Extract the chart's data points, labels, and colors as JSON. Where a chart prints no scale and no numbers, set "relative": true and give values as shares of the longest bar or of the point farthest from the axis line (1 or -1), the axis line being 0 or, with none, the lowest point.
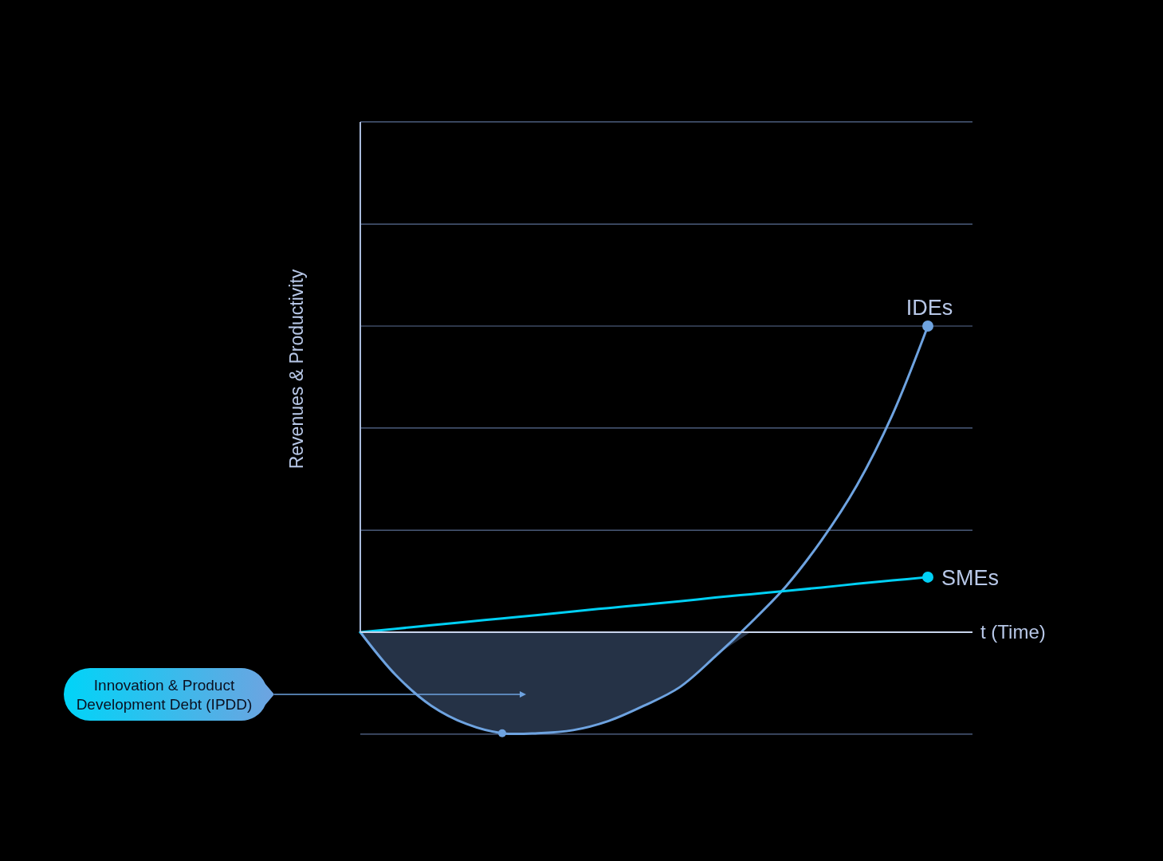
{
  "chart_data": {
    "type": "line",
    "relative": true,
    "xlabel": "t (Time)",
    "ylabel": "Revenues & Productivity",
    "ref_lines": [
      {
        "axis": "y",
        "value": 1.667
      },
      {
        "axis": "y",
        "value": 1.333
      },
      {
        "axis": "y",
        "value": 1
      },
      {
        "axis": "y",
        "value": 0.667
      },
      {
        "axis": "y",
        "value": 0.333
      },
      {
        "axis": "y",
        "value": -0.333
      }
    ],
    "annotations": [
      "Innovation & Product Development Debt (IPDD)"
    ],
    "categories": [
      null,
      null,
      null,
      null,
      null,
      null,
      null,
      null,
      null,
      null,
      null,
      null,
      null,
      null,
      null,
      null,
      null
    ],
    "series": [
      {
        "type": "area",
        "color": "#253246",
        "values": [
          0,
          -0.14,
          -0.24,
          -0.3,
          -0.33,
          -0.33,
          -0.32,
          -0.29,
          -0.24,
          -0.18,
          -0.08,
          0,
          null,
          null,
          null,
          null,
          null
        ]
      },
      {
        "name": "IDEs",
        "color": "#6ea3e0",
        "values": [
          0,
          -0.14,
          -0.24,
          -0.3,
          -0.33,
          -0.33,
          -0.32,
          -0.29,
          -0.24,
          -0.18,
          -0.08,
          0.03,
          0.15,
          0.3,
          0.48,
          0.71,
          1
        ]
      },
      {
        "name": "SMEs",
        "color": "#00d0f5",
        "values": [
          0,
          0.011,
          0.023,
          0.034,
          0.045,
          0.056,
          0.068,
          0.079,
          0.09,
          0.101,
          0.113,
          0.124,
          0.135,
          0.146,
          0.158,
          0.169,
          0.18
        ]
      }
    ]
  }
}
